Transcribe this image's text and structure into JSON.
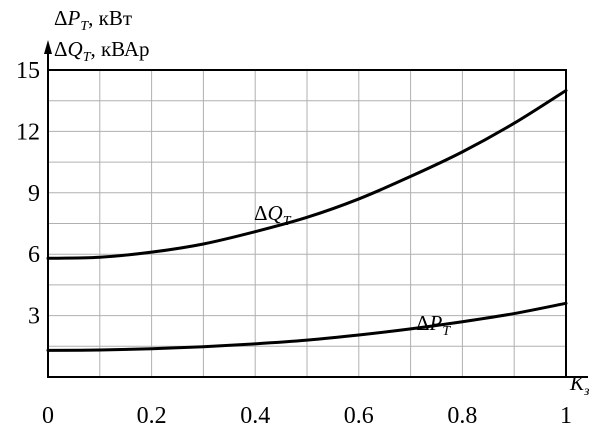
{
  "chart_data": {
    "type": "line",
    "x_ticks": [
      "0",
      "0.2",
      "0.4",
      "0.6",
      "0.8",
      "1"
    ],
    "y_ticks": [
      "3",
      "6",
      "9",
      "12",
      "15"
    ],
    "xlim": [
      0,
      1
    ],
    "ylim": [
      0,
      15
    ],
    "grid": true,
    "x_axis_label": {
      "delta": "",
      "symbol": "K",
      "subscript": "з",
      "unit": ""
    },
    "y_axis_label_1": {
      "delta": "Δ",
      "symbol": "P",
      "subscript": "T",
      "unit": ", кВт"
    },
    "y_axis_label_2": {
      "delta": "Δ",
      "symbol": "Q",
      "subscript": "T",
      "unit": ", кВАр"
    },
    "x": [
      0,
      0.1,
      0.2,
      0.3,
      0.4,
      0.5,
      0.6,
      0.7,
      0.8,
      0.9,
      1.0
    ],
    "series": [
      {
        "label": {
          "delta": "Δ",
          "symbol": "Q",
          "subscript": "T"
        },
        "values": [
          5.8,
          5.85,
          6.1,
          6.5,
          7.1,
          7.8,
          8.7,
          9.8,
          11.0,
          12.4,
          14.0
        ]
      },
      {
        "label": {
          "delta": "Δ",
          "symbol": "P",
          "subscript": "T"
        },
        "values": [
          1.3,
          1.32,
          1.38,
          1.48,
          1.62,
          1.8,
          2.05,
          2.35,
          2.7,
          3.1,
          3.6
        ]
      }
    ]
  }
}
